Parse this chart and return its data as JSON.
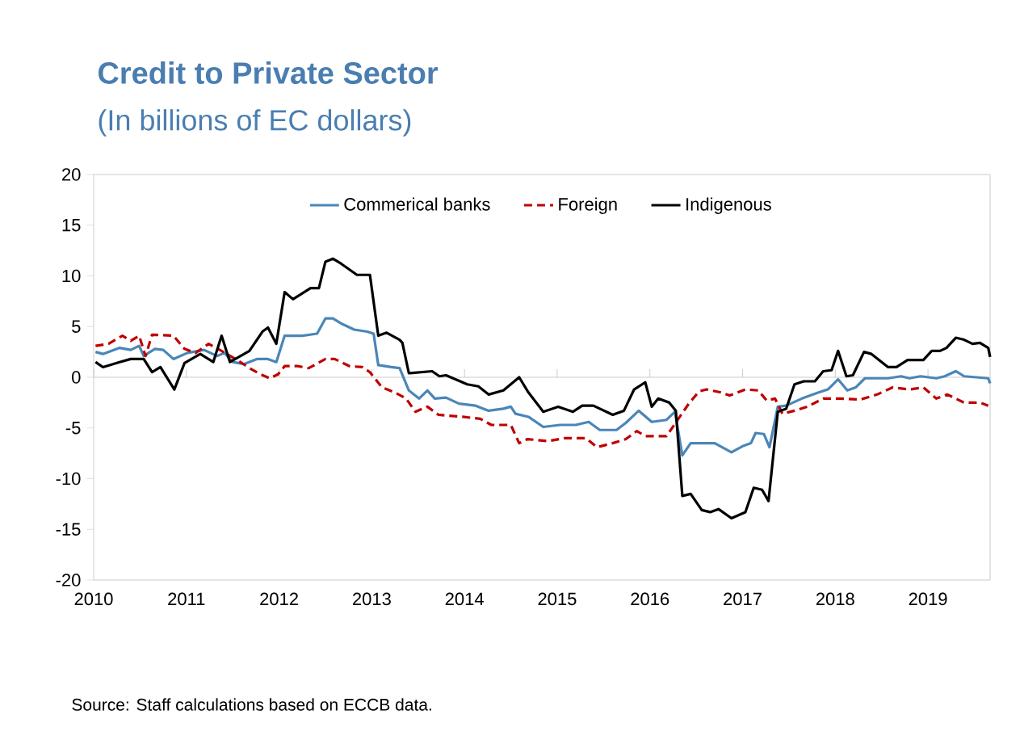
{
  "chart_data": {
    "type": "line",
    "title": "Credit to Private Sector",
    "subtitle": "(In billions of EC dollars)",
    "annotations": [
      "Source: Staff calculations based on ECCB data."
    ],
    "xlim": [
      2010,
      2019.67
    ],
    "xticks": [
      2010,
      2011,
      2012,
      2013,
      2014,
      2015,
      2016,
      2017,
      2018,
      2019
    ],
    "ylim": [
      -20,
      20
    ],
    "yticks": [
      -20,
      -15,
      -10,
      -5,
      0,
      5,
      10,
      15,
      20
    ],
    "legend": "top",
    "series": [
      {
        "name": "Commerical banks",
        "color": "#4a86b8",
        "line_style": "solid",
        "x": [
          2010.02,
          2010.1,
          2010.28,
          2010.4,
          2010.49,
          2010.54,
          2010.66,
          2010.75,
          2010.86,
          2011.01,
          2011.19,
          2011.33,
          2011.41,
          2011.5,
          2011.62,
          2011.76,
          2011.88,
          2011.97,
          2012.06,
          2012.25,
          2012.41,
          2012.5,
          2012.58,
          2012.67,
          2012.81,
          2012.95,
          2013.02,
          2013.07,
          2013.21,
          2013.3,
          2013.4,
          2013.51,
          2013.6,
          2013.68,
          2013.8,
          2013.94,
          2014.12,
          2014.26,
          2014.42,
          2014.5,
          2014.55,
          2014.69,
          2014.85,
          2015.03,
          2015.2,
          2015.34,
          2015.46,
          2015.64,
          2015.74,
          2015.88,
          2016.02,
          2016.18,
          2016.27,
          2016.35,
          2016.44,
          2016.7,
          2016.88,
          2017.0,
          2017.09,
          2017.14,
          2017.23,
          2017.29,
          2017.38,
          2017.47,
          2017.64,
          2017.82,
          2017.92,
          2018.03,
          2018.13,
          2018.22,
          2018.32,
          2018.57,
          2018.71,
          2018.8,
          2018.92,
          2019.09,
          2019.18,
          2019.3,
          2019.39,
          2019.65,
          2019.67
        ],
        "values": [
          2.5,
          2.3,
          2.9,
          2.7,
          3.1,
          2.1,
          2.8,
          2.7,
          1.8,
          2.4,
          2.7,
          2.1,
          2.4,
          1.5,
          1.3,
          1.8,
          1.8,
          1.5,
          4.1,
          4.1,
          4.3,
          5.8,
          5.8,
          5.3,
          4.7,
          4.5,
          4.3,
          1.2,
          1.0,
          0.9,
          -1.3,
          -2.1,
          -1.3,
          -2.1,
          -2.0,
          -2.6,
          -2.8,
          -3.3,
          -3.1,
          -2.9,
          -3.6,
          -3.9,
          -4.9,
          -4.7,
          -4.7,
          -4.4,
          -5.2,
          -5.2,
          -4.5,
          -3.3,
          -4.4,
          -4.2,
          -3.4,
          -7.7,
          -6.5,
          -6.5,
          -7.4,
          -6.8,
          -6.5,
          -5.5,
          -5.6,
          -6.9,
          -2.9,
          -2.8,
          -2.1,
          -1.5,
          -1.2,
          -0.2,
          -1.3,
          -1.0,
          -0.1,
          -0.1,
          0.1,
          -0.1,
          0.1,
          -0.1,
          0.1,
          0.6,
          0.1,
          -0.1,
          -0.6
        ]
      },
      {
        "name": "Foreign",
        "color": "#c00000",
        "line_style": "dashed",
        "x": [
          2010.02,
          2010.16,
          2010.31,
          2010.4,
          2010.49,
          2010.56,
          2010.63,
          2010.86,
          2010.98,
          2011.1,
          2011.24,
          2011.38,
          2011.55,
          2011.68,
          2011.8,
          2011.9,
          2011.99,
          2012.06,
          2012.2,
          2012.32,
          2012.5,
          2012.6,
          2012.76,
          2012.9,
          2012.98,
          2013.11,
          2013.25,
          2013.37,
          2013.47,
          2013.6,
          2013.72,
          2013.98,
          2014.17,
          2014.29,
          2014.5,
          2014.59,
          2014.68,
          2014.9,
          2015.08,
          2015.31,
          2015.43,
          2015.6,
          2015.74,
          2015.86,
          2015.95,
          2016.18,
          2016.3,
          2016.42,
          2016.53,
          2016.61,
          2016.77,
          2016.86,
          2017.03,
          2017.17,
          2017.26,
          2017.35,
          2017.43,
          2017.56,
          2017.7,
          2017.87,
          2018.05,
          2018.27,
          2018.45,
          2018.62,
          2018.8,
          2018.95,
          2019.09,
          2019.21,
          2019.39,
          2019.56,
          2019.65
        ],
        "values": [
          3.1,
          3.3,
          4.1,
          3.6,
          4.1,
          2.1,
          4.2,
          4.1,
          2.8,
          2.4,
          3.3,
          2.6,
          1.7,
          0.9,
          0.3,
          -0.1,
          0.3,
          1.1,
          1.1,
          0.9,
          1.8,
          1.8,
          1.1,
          1.0,
          0.5,
          -1.0,
          -1.5,
          -2.1,
          -3.4,
          -2.9,
          -3.7,
          -3.9,
          -4.1,
          -4.7,
          -4.7,
          -6.5,
          -6.1,
          -6.3,
          -6.0,
          -6.0,
          -6.9,
          -6.5,
          -6.1,
          -5.3,
          -5.8,
          -5.8,
          -4.2,
          -2.6,
          -1.4,
          -1.2,
          -1.5,
          -1.8,
          -1.2,
          -1.3,
          -2.3,
          -2.1,
          -3.6,
          -3.3,
          -2.9,
          -2.1,
          -2.1,
          -2.2,
          -1.7,
          -1.0,
          -1.2,
          -1.0,
          -2.1,
          -1.7,
          -2.5,
          -2.5,
          -2.8
        ]
      },
      {
        "name": "Indigenous",
        "color": "#000000",
        "line_style": "solid",
        "x": [
          2010.02,
          2010.1,
          2010.28,
          2010.4,
          2010.54,
          2010.63,
          2010.72,
          2010.87,
          2010.98,
          2011.15,
          2011.29,
          2011.38,
          2011.47,
          2011.68,
          2011.82,
          2011.88,
          2011.97,
          2012.06,
          2012.15,
          2012.34,
          2012.43,
          2012.5,
          2012.58,
          2012.67,
          2012.84,
          2012.98,
          2013.07,
          2013.16,
          2013.3,
          2013.33,
          2013.4,
          2013.65,
          2013.73,
          2013.8,
          2014.03,
          2014.15,
          2014.26,
          2014.42,
          2014.59,
          2014.69,
          2014.85,
          2015.01,
          2015.17,
          2015.27,
          2015.39,
          2015.6,
          2015.72,
          2015.83,
          2015.95,
          2016.02,
          2016.09,
          2016.21,
          2016.28,
          2016.35,
          2016.44,
          2016.56,
          2016.65,
          2016.74,
          2016.88,
          2017.03,
          2017.12,
          2017.21,
          2017.28,
          2017.38,
          2017.47,
          2017.56,
          2017.66,
          2017.78,
          2017.87,
          2017.96,
          2018.03,
          2018.12,
          2018.19,
          2018.31,
          2018.39,
          2018.57,
          2018.66,
          2018.78,
          2018.95,
          2019.04,
          2019.13,
          2019.2,
          2019.3,
          2019.39,
          2019.48,
          2019.56,
          2019.65,
          2019.67
        ],
        "values": [
          1.5,
          1.0,
          1.5,
          1.8,
          1.8,
          0.5,
          1.0,
          -1.2,
          1.4,
          2.3,
          1.5,
          4.1,
          1.5,
          2.6,
          4.5,
          4.9,
          3.3,
          8.4,
          7.7,
          8.8,
          8.8,
          11.4,
          11.7,
          11.2,
          10.1,
          10.1,
          4.1,
          4.4,
          3.7,
          3.4,
          0.4,
          0.6,
          0.1,
          0.2,
          -0.7,
          -0.9,
          -1.7,
          -1.3,
          0.0,
          -1.5,
          -3.4,
          -2.9,
          -3.4,
          -2.8,
          -2.8,
          -3.7,
          -3.3,
          -1.2,
          -0.5,
          -2.9,
          -2.1,
          -2.5,
          -3.3,
          -11.7,
          -11.5,
          -13.1,
          -13.3,
          -13.0,
          -13.9,
          -13.3,
          -10.9,
          -11.1,
          -12.2,
          -3.4,
          -3.1,
          -0.7,
          -0.4,
          -0.4,
          0.6,
          0.7,
          2.6,
          0.1,
          0.2,
          2.5,
          2.3,
          1.0,
          1.0,
          1.7,
          1.7,
          2.6,
          2.6,
          2.9,
          3.9,
          3.7,
          3.3,
          3.4,
          2.9,
          2.0
        ]
      }
    ]
  }
}
